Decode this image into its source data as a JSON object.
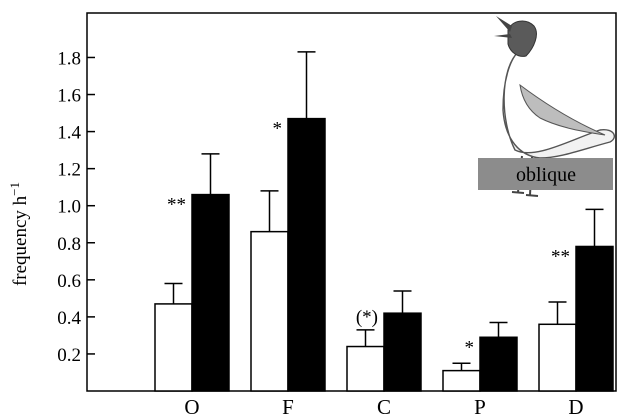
{
  "chart_data": {
    "type": "bar",
    "categories": [
      "O",
      "F",
      "C",
      "P",
      "D"
    ],
    "series": [
      {
        "fill": "white",
        "values": [
          0.47,
          0.86,
          0.24,
          0.11,
          0.36
        ],
        "errors": [
          0.11,
          0.22,
          0.09,
          0.04,
          0.12
        ]
      },
      {
        "fill": "black",
        "values": [
          1.06,
          1.47,
          0.42,
          0.29,
          0.78
        ],
        "errors": [
          0.22,
          0.36,
          0.12,
          0.08,
          0.2
        ]
      }
    ],
    "significance": [
      "**",
      "*",
      "(*)",
      "*",
      "**"
    ],
    "ylabel": "frequency h",
    "ylabel_superscript": "−1",
    "yticks": [
      "0.2",
      "0.4",
      "0.6",
      "0.8",
      "1.0",
      "1.2",
      "1.4",
      "1.6",
      "1.8"
    ],
    "ylim": [
      0,
      2.04
    ],
    "grid": false,
    "inset": {
      "icon": "gull-oblique-posture-illustration",
      "label": "oblique"
    }
  }
}
